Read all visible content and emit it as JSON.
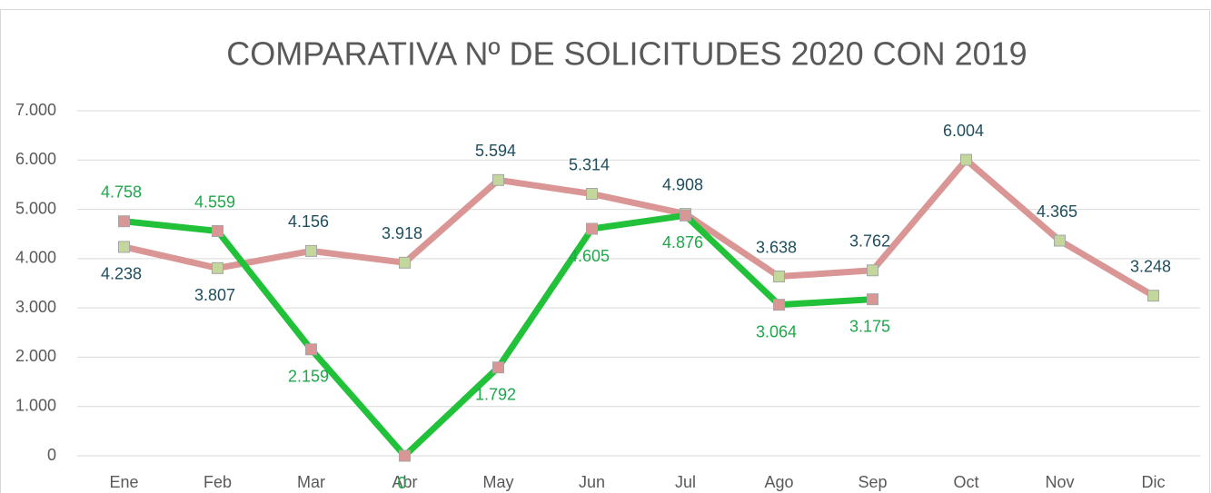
{
  "chart_data": {
    "type": "line",
    "title": "COMPARATIVA Nº DE SOLICITUDES 2020 CON 2019",
    "categories": [
      "Ene",
      "Feb",
      "Mar",
      "Abr",
      "May",
      "Jun",
      "Jul",
      "Ago",
      "Sep",
      "Oct",
      "Nov",
      "Dic"
    ],
    "series": [
      {
        "color": "#d99694",
        "marker_color": "#c3d69b",
        "label_color": "#1f4e5f",
        "values": [
          4238,
          3807,
          4156,
          3918,
          5594,
          5314,
          4908,
          3638,
          3762,
          6004,
          4365,
          3248
        ],
        "value_labels": [
          "4.238",
          "3.807",
          "4.156",
          "3.918",
          "5.594",
          "5.314",
          "4.908",
          "3.638",
          "3.762",
          "6.004",
          "4.365",
          "3.248"
        ]
      },
      {
        "color": "#22c13a",
        "marker_color": "#d99694",
        "label_color": "#1ea84a",
        "values": [
          4758,
          4559,
          2159,
          0,
          1792,
          4605,
          4876,
          3064,
          3175,
          null,
          null,
          null
        ],
        "value_labels": [
          "4.758",
          "4.559",
          "2.159",
          "0",
          "1.792",
          "4.605",
          "4.876",
          "3.064",
          "3.175",
          null,
          null,
          null
        ]
      }
    ],
    "ylim": [
      0,
      7000
    ],
    "yticks": [
      0,
      {
        "value": 1000,
        "label": "1.000"
      },
      {
        "value": 2000,
        "label": "2.000"
      },
      {
        "value": 3000,
        "label": "3.000"
      },
      {
        "value": 4000,
        "label": "4.000"
      },
      {
        "value": 5000,
        "label": "5.000"
      },
      {
        "value": 6000,
        "label": "6.000"
      },
      {
        "value": 7000,
        "label": "7.000"
      }
    ],
    "grid": true
  }
}
